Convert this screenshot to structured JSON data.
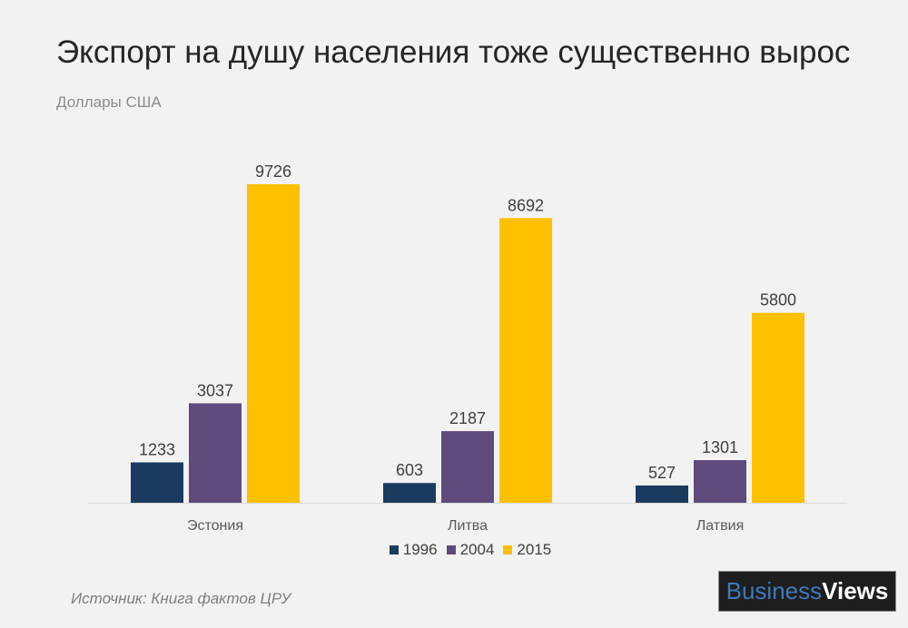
{
  "title": "Экспорт на душу населения тоже существенно вырос",
  "subtitle": "Доллары США",
  "source": "Источник: Книга фактов ЦРУ",
  "logo": {
    "part1": "Business",
    "part2": "Views"
  },
  "colors": {
    "1996": "#1b3a5f",
    "2004": "#5f4b7b",
    "2015": "#ffc000"
  },
  "chart_data": {
    "type": "bar",
    "title": "Экспорт на душу населения тоже существенно вырос",
    "ylabel": "Доллары США",
    "categories": [
      "Эстония",
      "Литва",
      "Латвия"
    ],
    "series": [
      {
        "name": "1996",
        "values": [
          1233,
          603,
          527
        ],
        "color": "#1b3a5f"
      },
      {
        "name": "2004",
        "values": [
          3037,
          2187,
          1301
        ],
        "color": "#5f4b7b"
      },
      {
        "name": "2015",
        "values": [
          9726,
          8692,
          5800
        ],
        "color": "#ffc000"
      }
    ],
    "ylim": [
      0,
      9726
    ],
    "grid": false,
    "legend": "bottom",
    "data_labels": true
  }
}
